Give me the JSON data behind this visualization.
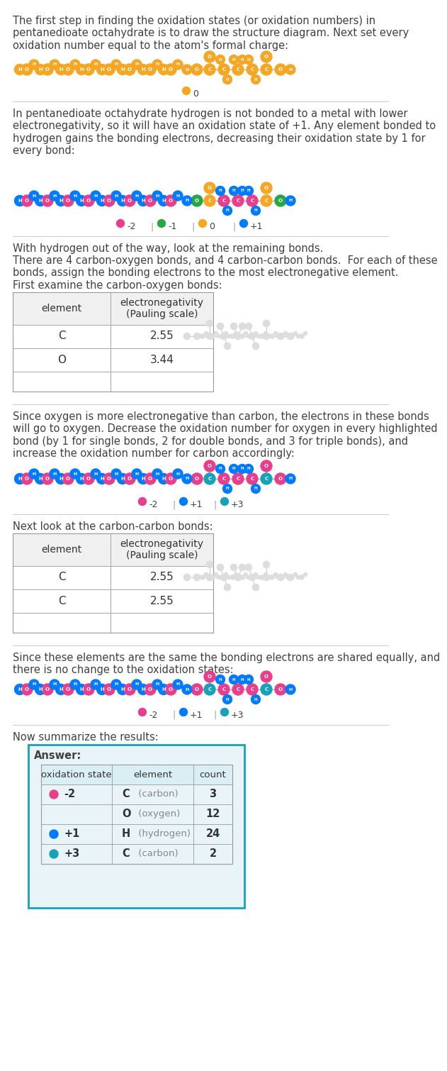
{
  "bg_color": "#ffffff",
  "text_color": "#404040",
  "sec1_text": "The first step in finding the oxidation states (or oxidation numbers) in\npentanedioate octahydrate is to draw the structure diagram. Next set every\noxidation number equal to the atom's formal charge:",
  "sec2_text": "In pentanedioate octahydrate hydrogen is not bonded to a metal with lower\nelectronegativity, so it will have an oxidation state of +1. Any element bonded to\nhydrogen gains the bonding electrons, decreasing their oxidation state by 1 for\nevery bond:",
  "sec3_line1": "With hydrogen out of the way, look at the remaining bonds.",
  "sec3_line2": "There are 4 carbon-oxygen bonds, and 4 carbon-carbon bonds.  For each of these\nbonds, assign the bonding electrons to the most electronegative element.",
  "sec3_sub": "First examine the carbon-oxygen bonds:",
  "sec4_text": "Since oxygen is more electronegative than carbon, the electrons in these bonds\nwill go to oxygen. Decrease the oxidation number for oxygen in every highlighted\nbond (by 1 for single bonds, 2 for double bonds, and 3 for triple bonds), and\nincrease the oxidation number for carbon accordingly:",
  "sec5_sub": "Next look at the carbon-carbon bonds:",
  "sec6_text": "Since these elements are the same the bonding electrons are shared equally, and\nthere is no change to the oxidation states:",
  "sec7_text": "Now summarize the results:",
  "col_orange": "#f5a623",
  "col_pink": "#e83e8c",
  "col_green": "#28a745",
  "col_blue": "#007bff",
  "col_teal": "#17a2b8",
  "col_gray": "#aaaaaa",
  "answer_bg": "#e8f4f8",
  "answer_border": "#17a2b8",
  "answer_headers": [
    "oxidation state",
    "element",
    "count"
  ],
  "answer_rows": [
    [
      "-2",
      "#e83e8c",
      "C",
      "(carbon)",
      "3"
    ],
    [
      "",
      "",
      "O",
      "(oxygen)",
      "12"
    ],
    [
      "+1",
      "#007bff",
      "H",
      "(hydrogen)",
      "24"
    ],
    [
      "+3",
      "#17a2b8",
      "C",
      "(carbon)",
      "2"
    ]
  ]
}
